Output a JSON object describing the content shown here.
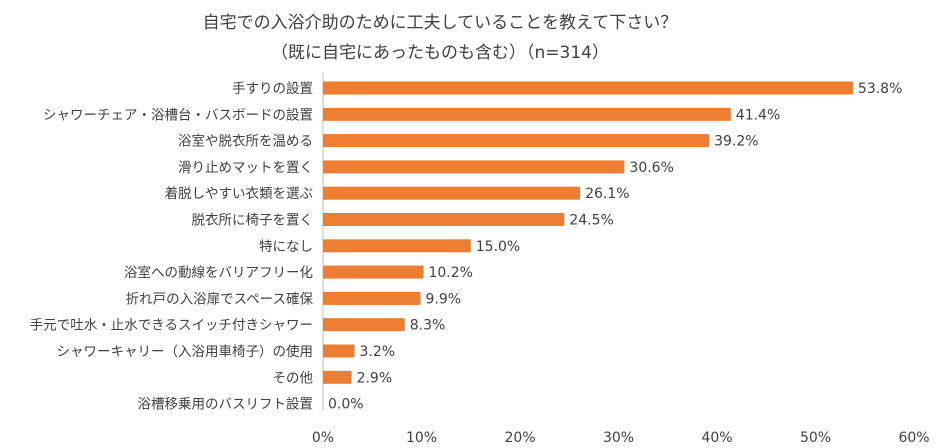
{
  "chart_data": {
    "type": "bar",
    "orientation": "horizontal",
    "title": "自宅での入浴介助のために工夫していることを教えて下さい？",
    "subtitle": "（既に自宅にあったものも含む）（n=314）",
    "categories": [
      "手すりの設置",
      "シャワーチェア・浴槽台・バスボードの設置",
      "浴室や脱衣所を温める",
      "滑り止めマットを置く",
      "着脱しやすい衣類を選ぶ",
      "脱衣所に椅子を置く",
      "特になし",
      "浴室への動線をバリアフリー化",
      "折れ戸の入浴扉でスペース確保",
      "手元で吐水・止水できるスイッチ付きシャワー",
      "シャワーキャリー（入浴用車椅子）の使用",
      "その他",
      "浴槽移乗用のバスリフト設置"
    ],
    "values": [
      53.8,
      41.4,
      39.2,
      30.6,
      26.1,
      24.5,
      15.0,
      10.2,
      9.9,
      8.3,
      3.2,
      2.9,
      0.0
    ],
    "value_labels": [
      "53.8%",
      "41.4%",
      "39.2%",
      "30.6%",
      "26.1%",
      "24.5%",
      "15.0%",
      "10.2%",
      "9.9%",
      "8.3%",
      "3.2%",
      "2.9%",
      "0.0%"
    ],
    "xlim": [
      0,
      60
    ],
    "xticks": [
      "0%",
      "10%",
      "20%",
      "30%",
      "40%",
      "50%",
      "60%"
    ],
    "xlabel": "",
    "ylabel": "",
    "bar_color": "#ED7D31",
    "grid": false,
    "legend": "none"
  }
}
